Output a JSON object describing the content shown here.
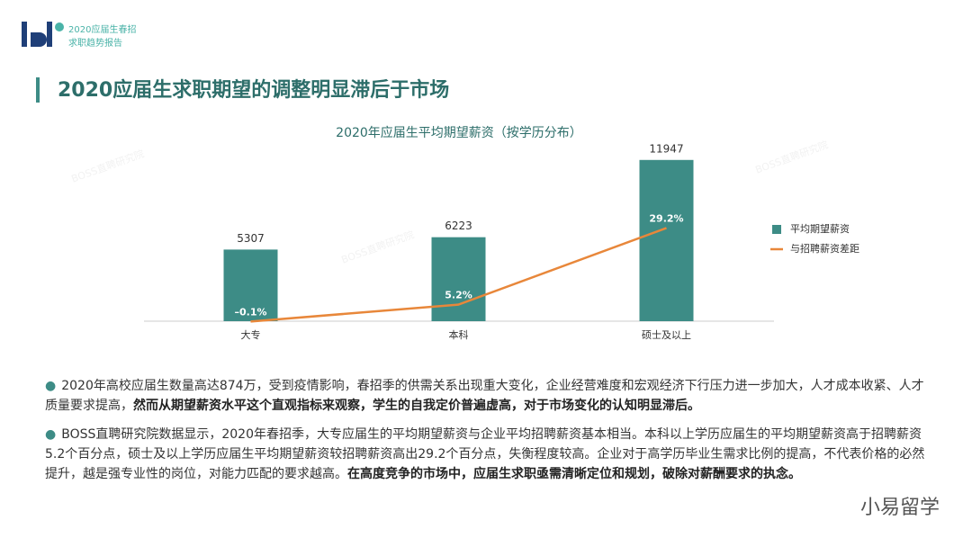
{
  "header": {
    "logo_line1": "2020应届生春招",
    "logo_line2": "求职趋势报告",
    "title": "2020应届生求职期望的调整明显滞后于市场"
  },
  "watermark": "BOSS直聘研究院",
  "chart_data": {
    "type": "bar_line",
    "title": "2020年应届生平均期望薪资（按学历分布）",
    "categories": [
      "大专",
      "本科",
      "硕士及以上"
    ],
    "ylim": [
      0,
      13000
    ],
    "y2lim": [
      0,
      55
    ],
    "legend": "right",
    "series": [
      {
        "name": "平均期望薪资",
        "color": "#3d8c86",
        "type": "bar",
        "values": [
          5307,
          6223,
          11947
        ]
      },
      {
        "name": "与招聘薪资差距",
        "color": "#e8873a",
        "type": "line",
        "axis": "y2",
        "values": [
          -0.1,
          5.2,
          29.2
        ],
        "value_labels": [
          "–0.1%",
          "5.2%",
          "29.2%"
        ]
      }
    ]
  },
  "paragraphs": [
    {
      "text": "2020年高校应届生数量高达874万，受到疫情影响，春招季的供需关系出现重大变化，企业经营难度和宏观经济下行压力进一步加大，人才成本收紧、人才质量要求提高，",
      "bold": "然而从期望薪资水平这个直观指标来观察，学生的自我定价普遍虚高，对于市场变化的认知明显滞后。"
    },
    {
      "text": "BOSS直聘研究院数据显示，2020年春招季，大专应届生的平均期望薪资与企业平均招聘薪资基本相当。本科以上学历应届生的平均期望薪资高于招聘薪资5.2个百分点，硕士及以上学历应届生平均期望薪资较招聘薪资高出29.2个百分点，失衡程度较高。企业对于高学历毕业生需求比例的提高，不代表价格的必然提升，越是强专业性的岗位，对能力匹配的要求越高。",
      "bold": "在高度竞争的市场中，应届生求职亟需清晰定位和规划，破除对薪酬要求的执念。"
    }
  ],
  "footer_brand": "小易留学"
}
